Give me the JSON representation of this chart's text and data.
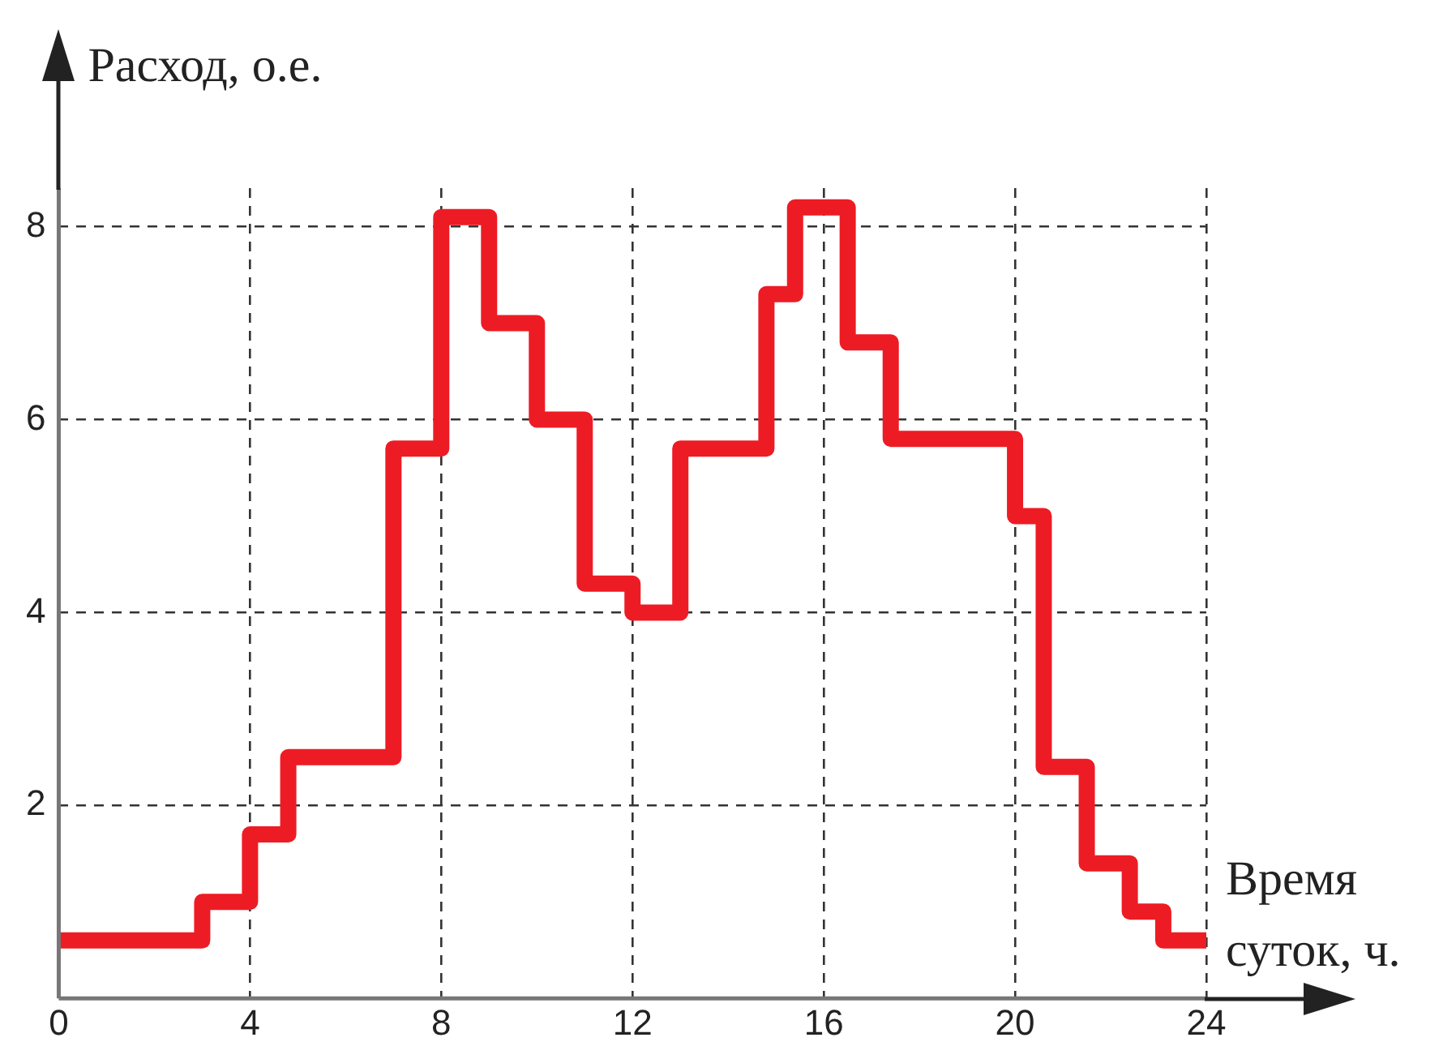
{
  "chart_data": {
    "type": "step",
    "xlabel": "Время суток, ч.",
    "ylabel": "Расход, о.е.",
    "x": [
      0,
      3,
      4,
      4.8,
      7,
      8,
      9,
      10,
      11,
      12,
      13,
      14.8,
      15.4,
      16.5,
      17.4,
      20,
      20.6,
      21.5,
      22.4,
      23.1,
      24
    ],
    "series": [
      {
        "color": "#ed1c24",
        "values": [
          0.6,
          1.0,
          1.7,
          2.5,
          5.7,
          8.1,
          7.0,
          6.0,
          4.3,
          4.0,
          5.7,
          7.3,
          8.2,
          6.8,
          5.8,
          5.0,
          2.4,
          1.4,
          0.9,
          0.6,
          0.6
        ]
      }
    ],
    "xlim": [
      0,
      24
    ],
    "xticks": [
      0,
      4,
      8,
      12,
      16,
      20,
      24
    ],
    "ylim": [
      0,
      8.4
    ],
    "yticks": [
      2,
      4,
      6,
      8
    ],
    "grid": true,
    "legend": false,
    "marker": "none",
    "line_style": "solid"
  }
}
